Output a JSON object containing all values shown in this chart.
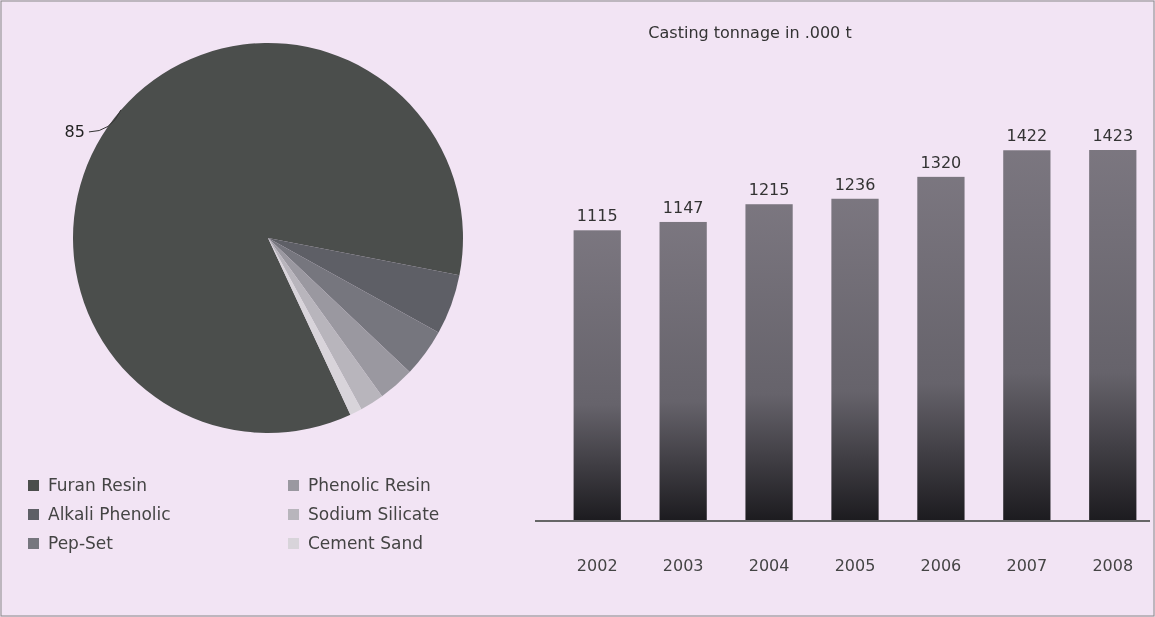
{
  "chart_data": [
    {
      "type": "pie",
      "categories": [
        "Furan Resin",
        "Alkali Phenolic",
        "Pep-Set",
        "Phenolic Resin",
        "Sodium Silicate",
        "Cement Sand"
      ],
      "values": [
        85,
        5,
        4,
        3,
        2,
        1
      ],
      "colors": [
        "#4b4e4c",
        "#5e5f66",
        "#76767e",
        "#9a98a0",
        "#b8b5bc",
        "#d8d4da"
      ],
      "value_labels": [
        "85",
        null,
        null,
        null,
        null,
        null
      ],
      "legend": "bottom"
    },
    {
      "type": "bar",
      "title": "Casting tonnage in .000 t",
      "categories": [
        "2002",
        "2003",
        "2004",
        "2005",
        "2006",
        "2007",
        "2008"
      ],
      "values": [
        1115,
        1147,
        1215,
        1236,
        1320,
        1422,
        1423
      ],
      "color": "#66636b",
      "tick_labels": "x",
      "data_labels": true
    }
  ]
}
